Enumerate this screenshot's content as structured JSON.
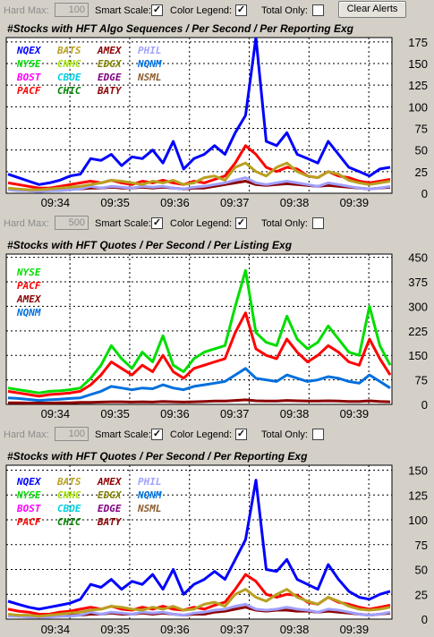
{
  "top_bar": {
    "hard_max_label": "Hard Max:",
    "hard_max_value": "100",
    "smart_scale_label": "Smart Scale:",
    "smart_scale_checked": true,
    "color_legend_label": "Color Legend:",
    "color_legend_checked": true,
    "total_only_label": "Total Only:",
    "total_only_checked": false,
    "clear_alerts_label": "Clear Alerts"
  },
  "bar2": {
    "hard_max_label": "Hard Max:",
    "hard_max_value": "500",
    "smart_scale_label": "Smart Scale:",
    "smart_scale_checked": true,
    "color_legend_label": "Color Legend:",
    "color_legend_checked": true,
    "total_only_label": "Total Only:",
    "total_only_checked": false
  },
  "bar3": {
    "hard_max_label": "Hard Max:",
    "hard_max_value": "100",
    "smart_scale_label": "Smart Scale:",
    "smart_scale_checked": true,
    "color_legend_label": "Color Legend:",
    "color_legend_checked": true,
    "total_only_label": "Total Only:",
    "total_only_checked": false
  },
  "colors": {
    "plot_bg": "#ffffff",
    "grid": "#000000",
    "NQEX": "#0000ff",
    "BATS": "#b8a020",
    "AMEX": "#8b0000",
    "PHIL": "#a0a0ff",
    "NYSE": "#00dd00",
    "CNHC": "#a0e000",
    "EDGX": "#808000",
    "NQNM": "#0070dd",
    "BOST": "#ff00ff",
    "CBOE": "#00d0e0",
    "EDGE": "#800080",
    "NSML": "#8b5a2b",
    "PACF": "#ff0000",
    "CHIC": "#008000",
    "BATY": "#8b0000"
  },
  "chart_data": [
    {
      "type": "line",
      "title": "#Stocks with HFT Algo Sequences / Per Second / Per Reporting Exg",
      "x_ticks": [
        "09:34",
        "09:35",
        "09:36",
        "09:37",
        "09:38",
        "09:39"
      ],
      "y_ticks": [
        "0",
        "25",
        "50",
        "75",
        "100",
        "125",
        "150",
        "175"
      ],
      "ylim": [
        0,
        180
      ],
      "grid": true,
      "legend": [
        "NQEX",
        "BATS",
        "AMEX",
        "PHIL",
        "NYSE",
        "CNHC",
        "EDGX",
        "NQNM",
        "BOST",
        "CBOE",
        "EDGE",
        "NSML",
        "PACF",
        "CHIC",
        "BATY"
      ],
      "series": [
        {
          "name": "NQEX",
          "values": [
            22,
            18,
            14,
            10,
            12,
            15,
            20,
            22,
            40,
            38,
            45,
            32,
            42,
            40,
            50,
            35,
            60,
            28,
            40,
            45,
            55,
            45,
            70,
            90,
            180,
            60,
            55,
            70,
            45,
            40,
            35,
            60,
            45,
            30,
            25,
            20,
            28,
            30
          ]
        },
        {
          "name": "BATS",
          "values": [
            6,
            5,
            4,
            4,
            5,
            6,
            7,
            8,
            10,
            12,
            15,
            14,
            12,
            10,
            14,
            12,
            15,
            10,
            12,
            18,
            20,
            15,
            30,
            35,
            25,
            20,
            30,
            35,
            25,
            20,
            18,
            25,
            22,
            15,
            12,
            10,
            12,
            14
          ]
        },
        {
          "name": "PACF",
          "values": [
            12,
            10,
            8,
            6,
            6,
            8,
            10,
            12,
            14,
            12,
            15,
            12,
            10,
            14,
            12,
            15,
            12,
            10,
            14,
            12,
            16,
            20,
            35,
            55,
            45,
            30,
            25,
            30,
            28,
            20,
            18,
            25,
            20,
            18,
            14,
            12,
            14,
            16
          ]
        },
        {
          "name": "PHIL",
          "values": [
            4,
            3,
            3,
            2,
            3,
            3,
            4,
            5,
            8,
            6,
            8,
            7,
            6,
            8,
            7,
            8,
            6,
            5,
            7,
            8,
            10,
            12,
            15,
            18,
            12,
            10,
            12,
            14,
            12,
            10,
            8,
            12,
            10,
            8,
            6,
            5,
            6,
            8
          ]
        },
        {
          "name": "AMEX",
          "values": [
            5,
            4,
            3,
            3,
            3,
            4,
            5,
            5,
            6,
            6,
            7,
            6,
            6,
            7,
            6,
            7,
            6,
            5,
            6,
            6,
            8,
            10,
            12,
            14,
            10,
            9,
            10,
            11,
            10,
            9,
            8,
            9,
            8,
            7,
            6,
            5,
            6,
            7
          ]
        }
      ]
    },
    {
      "type": "line",
      "title": "#Stocks with HFT Quotes / Per Second / Per Listing Exg",
      "x_ticks": [
        "09:34",
        "09:35",
        "09:36",
        "09:37",
        "09:38",
        "09:39"
      ],
      "y_ticks": [
        "0",
        "75",
        "150",
        "225",
        "300",
        "375",
        "450"
      ],
      "ylim": [
        0,
        460
      ],
      "grid": true,
      "legend": [
        "NYSE",
        "PACF",
        "AMEX",
        "NQNM"
      ],
      "series": [
        {
          "name": "NYSE",
          "values": [
            50,
            45,
            40,
            35,
            40,
            42,
            45,
            50,
            80,
            120,
            180,
            140,
            110,
            160,
            130,
            210,
            120,
            100,
            140,
            160,
            170,
            180,
            300,
            410,
            220,
            190,
            180,
            270,
            200,
            170,
            190,
            240,
            200,
            160,
            150,
            300,
            180,
            120
          ]
        },
        {
          "name": "PACF",
          "values": [
            40,
            35,
            30,
            25,
            30,
            32,
            35,
            40,
            60,
            90,
            130,
            110,
            90,
            120,
            100,
            150,
            100,
            80,
            110,
            120,
            130,
            140,
            220,
            280,
            170,
            150,
            140,
            200,
            160,
            130,
            150,
            180,
            160,
            130,
            120,
            200,
            140,
            90
          ]
        },
        {
          "name": "NQNM",
          "values": [
            20,
            18,
            15,
            12,
            14,
            16,
            18,
            20,
            30,
            40,
            55,
            50,
            45,
            50,
            48,
            60,
            50,
            45,
            55,
            60,
            65,
            70,
            90,
            110,
            80,
            75,
            70,
            90,
            80,
            70,
            75,
            85,
            80,
            70,
            65,
            90,
            70,
            50
          ]
        },
        {
          "name": "AMEX",
          "values": [
            5,
            5,
            4,
            4,
            4,
            5,
            5,
            6,
            6,
            7,
            8,
            8,
            7,
            8,
            7,
            9,
            8,
            7,
            8,
            9,
            10,
            10,
            12,
            14,
            11,
            10,
            10,
            12,
            11,
            10,
            10,
            11,
            10,
            9,
            9,
            11,
            9,
            8
          ]
        }
      ]
    },
    {
      "type": "line",
      "title": "#Stocks with HFT Quotes / Per Second / Per Reporting Exg",
      "x_ticks": [
        "09:34",
        "09:35",
        "09:36",
        "09:37",
        "09:38",
        "09:39"
      ],
      "y_ticks": [
        "0",
        "25",
        "50",
        "75",
        "100",
        "125",
        "150"
      ],
      "ylim": [
        0,
        155
      ],
      "grid": true,
      "legend": [
        "NQEX",
        "BATS",
        "AMEX",
        "PHIL",
        "NYSE",
        "CNHC",
        "EDGX",
        "NQNM",
        "BOST",
        "CBOE",
        "EDGE",
        "NSML",
        "PACF",
        "CHIC",
        "BATY"
      ],
      "series": [
        {
          "name": "NQEX",
          "values": [
            18,
            15,
            12,
            10,
            12,
            14,
            16,
            20,
            35,
            32,
            40,
            30,
            38,
            35,
            45,
            30,
            50,
            25,
            35,
            40,
            48,
            40,
            60,
            80,
            140,
            50,
            48,
            60,
            40,
            35,
            30,
            55,
            40,
            28,
            22,
            20,
            25,
            28
          ]
        },
        {
          "name": "BATS",
          "values": [
            5,
            4,
            4,
            3,
            4,
            5,
            6,
            7,
            9,
            10,
            13,
            12,
            10,
            9,
            12,
            10,
            13,
            9,
            10,
            15,
            17,
            13,
            25,
            30,
            22,
            18,
            25,
            30,
            22,
            18,
            15,
            22,
            18,
            13,
            10,
            9,
            10,
            12
          ]
        },
        {
          "name": "PACF",
          "values": [
            10,
            8,
            7,
            5,
            5,
            7,
            8,
            10,
            12,
            10,
            13,
            10,
            9,
            12,
            10,
            13,
            10,
            9,
            12,
            10,
            14,
            17,
            30,
            45,
            38,
            25,
            22,
            25,
            24,
            17,
            15,
            22,
            17,
            15,
            12,
            10,
            12,
            14
          ]
        },
        {
          "name": "PHIL",
          "values": [
            3,
            3,
            2,
            2,
            2,
            3,
            3,
            4,
            7,
            5,
            7,
            6,
            5,
            7,
            6,
            7,
            5,
            4,
            6,
            7,
            9,
            10,
            13,
            15,
            10,
            9,
            10,
            12,
            10,
            9,
            7,
            10,
            9,
            7,
            5,
            4,
            5,
            7
          ]
        },
        {
          "name": "AMEX",
          "values": [
            4,
            3,
            3,
            2,
            3,
            3,
            4,
            4,
            5,
            5,
            6,
            5,
            5,
            6,
            5,
            6,
            5,
            4,
            5,
            5,
            7,
            8,
            10,
            12,
            9,
            8,
            9,
            9,
            8,
            8,
            7,
            8,
            7,
            6,
            5,
            4,
            5,
            6
          ]
        }
      ]
    }
  ]
}
